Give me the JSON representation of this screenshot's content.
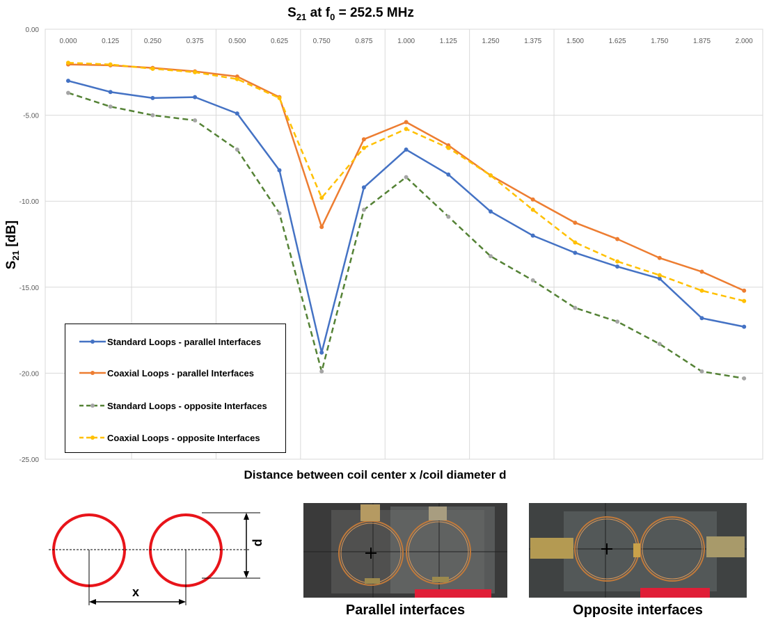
{
  "chart_data": {
    "type": "line",
    "title_main": "S",
    "title_sub": "21",
    "title_mid": " at f",
    "title_sub2": "0",
    "title_rest": " = 252.5 MHz",
    "ylabel_main": "S",
    "ylabel_sub": "21",
    "ylabel_rest": " [dB]",
    "xlabel": "Distance between coil center x /coil diameter d",
    "x": [
      "0.000",
      "0.125",
      "0.250",
      "0.375",
      "0.500",
      "0.625",
      "0.750",
      "0.875",
      "1.000",
      "1.125",
      "1.250",
      "1.375",
      "1.500",
      "1.625",
      "1.750",
      "1.875",
      "2.000"
    ],
    "ylim": [
      -25,
      0
    ],
    "yticks": [
      "0.00",
      "-5.00",
      "-10.00",
      "-15.00",
      "-20.00",
      "-25.00"
    ],
    "x_axis_position": "top",
    "grid": true,
    "legend_position": "lower-left",
    "series": [
      {
        "name": "Standard Loops - parallel Interfaces",
        "color": "#4472C4",
        "marker_color": "#4472C4",
        "dash": "solid",
        "values": [
          -3.0,
          -3.65,
          -4.0,
          -3.95,
          -4.9,
          -8.2,
          -18.8,
          -9.2,
          -7.0,
          -8.45,
          -10.6,
          -12.0,
          -13.0,
          -13.8,
          -14.5,
          -16.8,
          -17.3
        ]
      },
      {
        "name": "Coaxial Loops - parallel Interfaces",
        "color": "#ED7D31",
        "marker_color": "#ED7D31",
        "dash": "solid",
        "values": [
          -2.05,
          -2.1,
          -2.25,
          -2.45,
          -2.75,
          -3.95,
          -11.5,
          -6.4,
          -5.4,
          -6.75,
          -8.5,
          -9.9,
          -11.25,
          -12.2,
          -13.3,
          -14.1,
          -15.2
        ]
      },
      {
        "name": "Standard Loops - opposite Interfaces",
        "color": "#548235",
        "marker_color": "#A5A5A5",
        "dash": "dashed",
        "values": [
          -3.7,
          -4.5,
          -5.0,
          -5.3,
          -7.0,
          -10.7,
          -19.9,
          -10.5,
          -8.6,
          -10.9,
          -13.2,
          -14.6,
          -16.2,
          -17.0,
          -18.3,
          -19.9,
          -20.3
        ]
      },
      {
        "name": "Coaxial Loops - opposite Interfaces",
        "color": "#FFC000",
        "marker_color": "#FFC000",
        "dash": "dashed",
        "values": [
          -1.95,
          -2.05,
          -2.3,
          -2.5,
          -2.9,
          -4.0,
          -9.8,
          -6.9,
          -5.8,
          -6.9,
          -8.5,
          -10.5,
          -12.4,
          -13.5,
          -14.3,
          -15.2,
          -15.8
        ]
      }
    ]
  },
  "diagram": {
    "label_d": "d",
    "label_x": "x",
    "circle_color": "#E8141A"
  },
  "photos": {
    "parallel_caption": "Parallel interfaces",
    "opposite_caption": "Opposite interfaces"
  }
}
